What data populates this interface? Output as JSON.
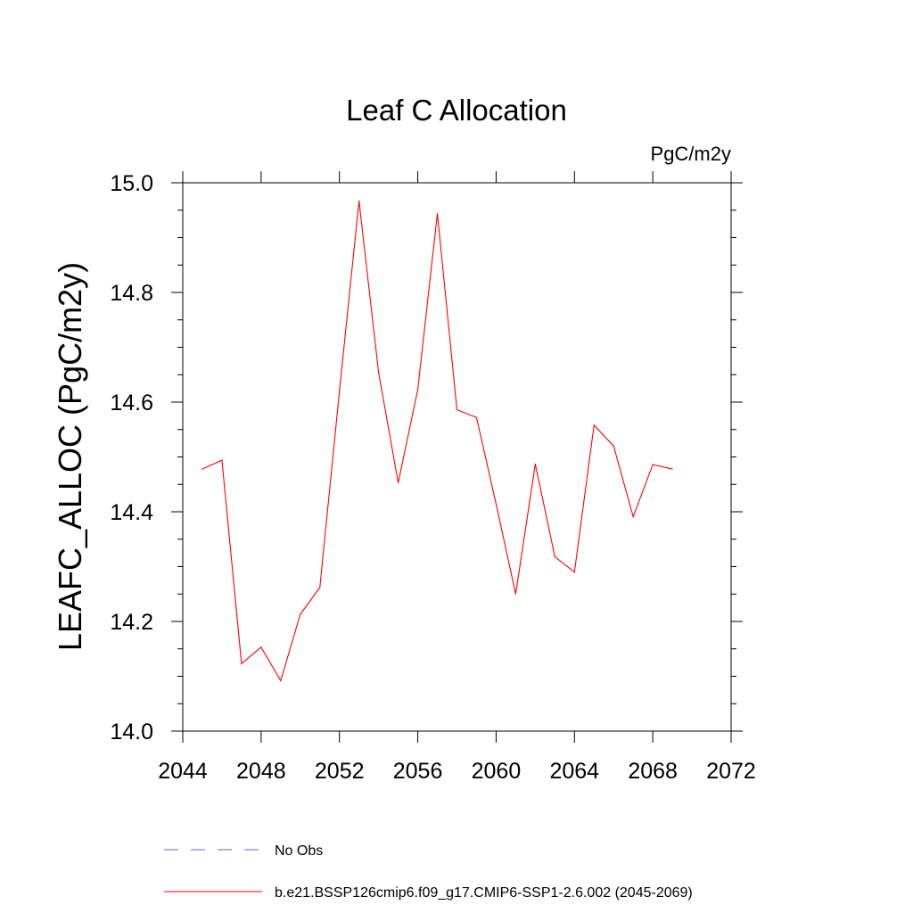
{
  "chart_data": {
    "type": "line",
    "title": "Leaf C Allocation",
    "units_label": "PgC/m2y",
    "ylabel": "LEAFC_ALLOC  (PgC/m2y)",
    "xlabel": "",
    "xlim": [
      2044,
      2072
    ],
    "ylim": [
      14.0,
      15.0
    ],
    "x_ticks": [
      2044,
      2048,
      2052,
      2056,
      2060,
      2064,
      2068,
      2072
    ],
    "y_ticks": [
      "14.0",
      "14.2",
      "14.4",
      "14.6",
      "14.8",
      "15.0"
    ],
    "series": [
      {
        "name": "b.e21.BSSP126cmip6.f09_g17.CMIP6-SSP1-2.6.002 (2045-2069)",
        "color": "#ff0000",
        "style": "solid",
        "x": [
          2045,
          2046,
          2047,
          2048,
          2049,
          2050,
          2051,
          2052,
          2053,
          2054,
          2055,
          2056,
          2057,
          2058,
          2059,
          2060,
          2061,
          2062,
          2063,
          2064,
          2065,
          2066,
          2067,
          2068,
          2069
        ],
        "values": [
          14.478,
          14.494,
          14.123,
          14.153,
          14.092,
          14.213,
          14.262,
          14.62,
          14.967,
          14.654,
          14.453,
          14.623,
          14.944,
          14.586,
          14.572,
          14.414,
          14.25,
          14.487,
          14.318,
          14.29,
          14.558,
          14.52,
          14.391,
          14.486,
          14.478
        ]
      }
    ],
    "legend": [
      {
        "label": "No Obs",
        "color": "#6666cc",
        "style": "dashed"
      },
      {
        "label": "b.e21.BSSP126cmip6.f09_g17.CMIP6-SSP1-2.6.002 (2045-2069)",
        "color": "#ff0000",
        "style": "solid"
      }
    ],
    "legend_position": "bottom"
  }
}
